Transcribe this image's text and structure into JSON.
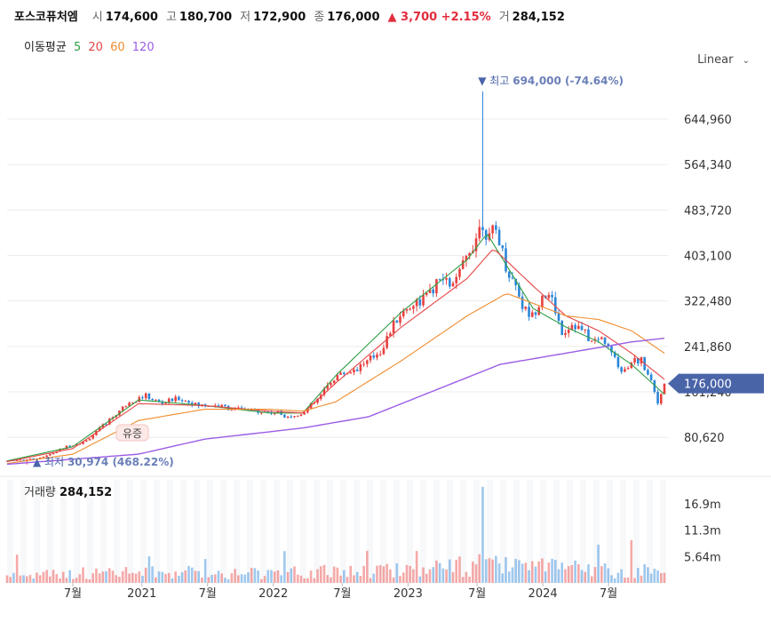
{
  "header": {
    "name": "포스코퓨처엠",
    "open_label": "시",
    "open": "174,600",
    "high_label": "고",
    "high": "180,700",
    "low_label": "저",
    "low": "172,900",
    "close_label": "종",
    "close": "176,000",
    "change": "▲ 3,700 +2.15%",
    "volume_label": "거",
    "volume": "284,152"
  },
  "ma_legend": {
    "label": "이동평균",
    "periods": [
      "5",
      "20",
      "60",
      "120"
    ],
    "colors": [
      "#2f9e44",
      "#e64545",
      "#f08c2e",
      "#9b5de5"
    ]
  },
  "scale_button": {
    "label": "Linear",
    "icon": "chevron-down-icon"
  },
  "colors": {
    "up": "#e8403f",
    "down": "#2b86d9",
    "price_tag": "#4a64a8"
  },
  "chart_data": {
    "type": "candlestick",
    "y_ticks": [
      "644,960",
      "564,340",
      "483,720",
      "403,100",
      "322,480",
      "241,860",
      "161,240",
      "80,620"
    ],
    "y_tick_values": [
      644960,
      564340,
      483720,
      403100,
      322480,
      241860,
      161240,
      80620
    ],
    "ylim": [
      40000,
      730000
    ],
    "current_price_tag": "176,000",
    "current_price": 176000,
    "max_label": "▼ 최고",
    "max_text": "694,000 (-74.64%)",
    "max_value": 694000,
    "min_label": "▲ 최저",
    "min_text": "30,974 (468.22%)",
    "min_value": 30974,
    "annotation": "유증",
    "x_labels": [
      "7월",
      "2021",
      "7월",
      "2022",
      "7월",
      "2023",
      "7월",
      "2024",
      "7월"
    ],
    "close_path": [
      [
        0,
        0.012
      ],
      [
        0.04,
        0.018
      ],
      [
        0.06,
        0.025
      ],
      [
        0.09,
        0.05
      ],
      [
        0.12,
        0.065
      ],
      [
        0.155,
        0.12
      ],
      [
        0.185,
        0.17
      ],
      [
        0.21,
        0.185
      ],
      [
        0.235,
        0.165
      ],
      [
        0.26,
        0.18
      ],
      [
        0.29,
        0.16
      ],
      [
        0.32,
        0.16
      ],
      [
        0.35,
        0.15
      ],
      [
        0.38,
        0.145
      ],
      [
        0.41,
        0.14
      ],
      [
        0.44,
        0.13
      ],
      [
        0.46,
        0.155
      ],
      [
        0.475,
        0.18
      ],
      [
        0.49,
        0.22
      ],
      [
        0.5,
        0.24
      ],
      [
        0.52,
        0.25
      ],
      [
        0.55,
        0.28
      ],
      [
        0.57,
        0.31
      ],
      [
        0.58,
        0.35
      ],
      [
        0.595,
        0.4
      ],
      [
        0.61,
        0.42
      ],
      [
        0.625,
        0.44
      ],
      [
        0.645,
        0.46
      ],
      [
        0.66,
        0.5
      ],
      [
        0.68,
        0.48
      ],
      [
        0.7,
        0.56
      ],
      [
        0.715,
        0.62
      ],
      [
        0.725,
        0.66
      ],
      [
        0.73,
        0.6
      ],
      [
        0.745,
        0.63
      ],
      [
        0.76,
        0.52
      ],
      [
        0.775,
        0.48
      ],
      [
        0.785,
        0.42
      ],
      [
        0.8,
        0.4
      ],
      [
        0.815,
        0.46
      ],
      [
        0.83,
        0.44
      ],
      [
        0.845,
        0.35
      ],
      [
        0.86,
        0.38
      ],
      [
        0.875,
        0.36
      ],
      [
        0.89,
        0.33
      ],
      [
        0.905,
        0.34
      ],
      [
        0.92,
        0.3
      ],
      [
        0.935,
        0.25
      ],
      [
        0.95,
        0.28
      ],
      [
        0.965,
        0.28
      ],
      [
        0.978,
        0.24
      ],
      [
        0.99,
        0.17
      ],
      [
        1.0,
        0.2
      ]
    ],
    "ma_paths": {
      "ma5": [
        [
          0,
          0.012
        ],
        [
          0.1,
          0.05
        ],
        [
          0.2,
          0.175
        ],
        [
          0.3,
          0.16
        ],
        [
          0.4,
          0.14
        ],
        [
          0.45,
          0.14
        ],
        [
          0.5,
          0.24
        ],
        [
          0.6,
          0.41
        ],
        [
          0.7,
          0.55
        ],
        [
          0.73,
          0.62
        ],
        [
          0.8,
          0.42
        ],
        [
          0.85,
          0.37
        ],
        [
          0.9,
          0.33
        ],
        [
          0.95,
          0.27
        ],
        [
          1.0,
          0.19
        ]
      ],
      "ma20": [
        [
          0,
          0.01
        ],
        [
          0.1,
          0.045
        ],
        [
          0.2,
          0.165
        ],
        [
          0.3,
          0.16
        ],
        [
          0.4,
          0.145
        ],
        [
          0.45,
          0.14
        ],
        [
          0.5,
          0.22
        ],
        [
          0.6,
          0.37
        ],
        [
          0.7,
          0.5
        ],
        [
          0.74,
          0.58
        ],
        [
          0.8,
          0.48
        ],
        [
          0.85,
          0.4
        ],
        [
          0.9,
          0.36
        ],
        [
          0.95,
          0.3
        ],
        [
          1.0,
          0.23
        ]
      ],
      "ma60": [
        [
          0,
          0.005
        ],
        [
          0.1,
          0.03
        ],
        [
          0.2,
          0.12
        ],
        [
          0.3,
          0.15
        ],
        [
          0.4,
          0.15
        ],
        [
          0.45,
          0.145
        ],
        [
          0.5,
          0.17
        ],
        [
          0.6,
          0.28
        ],
        [
          0.7,
          0.4
        ],
        [
          0.76,
          0.46
        ],
        [
          0.85,
          0.4
        ],
        [
          0.9,
          0.39
        ],
        [
          0.95,
          0.36
        ],
        [
          1.0,
          0.3
        ]
      ],
      "ma120": [
        [
          0,
          0.003
        ],
        [
          0.2,
          0.03
        ],
        [
          0.3,
          0.07
        ],
        [
          0.45,
          0.1
        ],
        [
          0.55,
          0.13
        ],
        [
          0.65,
          0.2
        ],
        [
          0.75,
          0.27
        ],
        [
          0.85,
          0.3
        ],
        [
          0.95,
          0.33
        ],
        [
          1.0,
          0.34
        ]
      ]
    }
  },
  "volume": {
    "label": "거래량",
    "value": "284,152",
    "ticks": [
      "16.9m",
      "11.3m",
      "5.64m"
    ],
    "tick_values": [
      16900000,
      11300000,
      5640000
    ],
    "vmax": 22000000
  }
}
